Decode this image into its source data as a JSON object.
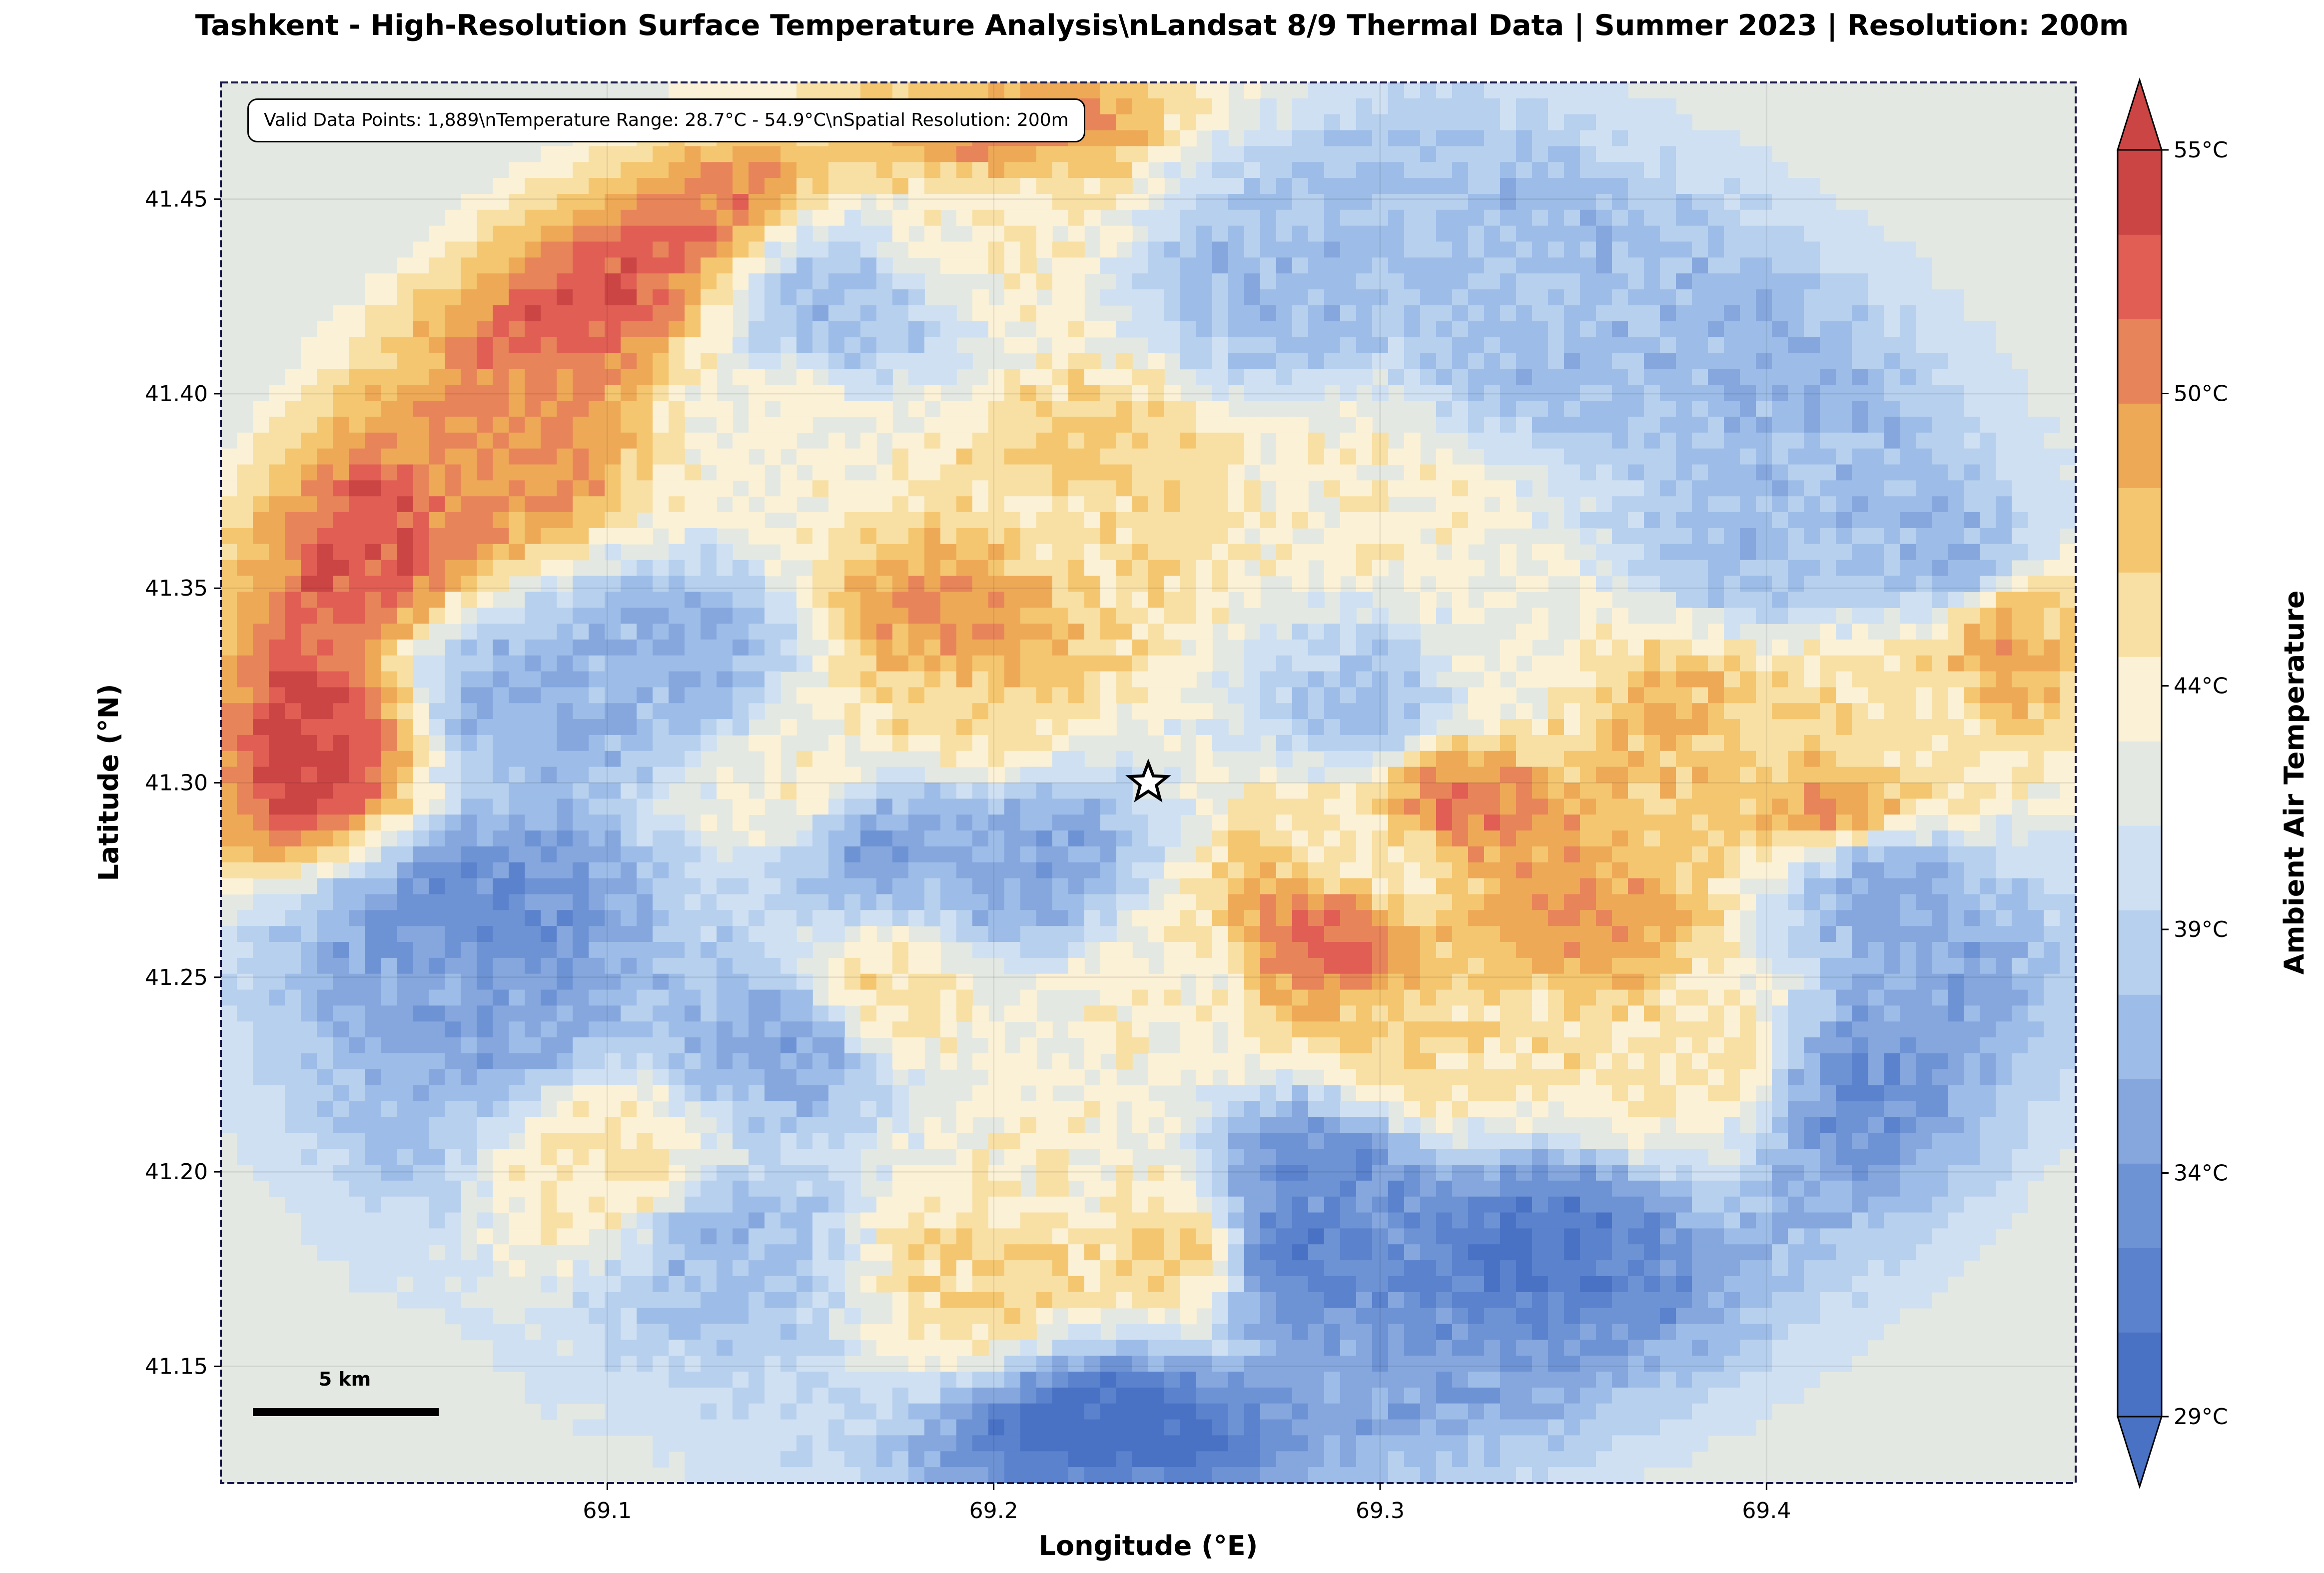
{
  "chart_data": {
    "type": "heatmap",
    "title": "Tashkent - High-Resolution Surface Temperature Analysis\\nLandsat 8/9 Thermal Data | Summer 2023 | Resolution: 200m",
    "xlabel": "Longitude (°E)",
    "ylabel": "Latitude (°N)",
    "xlim": [
      69.0,
      69.48
    ],
    "ylim": [
      41.12,
      41.48
    ],
    "x_ticks": [
      "69.1",
      "69.2",
      "69.3",
      "69.4"
    ],
    "y_ticks": [
      "41.15",
      "41.20",
      "41.25",
      "41.30",
      "41.35",
      "41.40",
      "41.45"
    ],
    "grid": true,
    "colorbar": {
      "label": "Ambient Air Temperature",
      "range": [
        29,
        55
      ],
      "ticks": [
        "29°C",
        "34°C",
        "39°C",
        "44°C",
        "50°C",
        "55°C"
      ],
      "colors": [
        "#4a72c4",
        "#5b82cc",
        "#6e93d4",
        "#85a7de",
        "#9dbde8",
        "#b6d0ee",
        "#cfe0f2",
        "#e3e8e2",
        "#fbf1d6",
        "#f8e0a4",
        "#f4c66f",
        "#eea957",
        "#e8845a",
        "#e05e54",
        "#cc4545"
      ]
    },
    "annotation": "Valid Data Points: 1,889\\nTemperature Range: 28.7°C - 54.9°C\\nSpatial Resolution: 200m",
    "scale_bar": "5 km",
    "marker": {
      "lon": 69.24,
      "lat": 41.3,
      "symbol": "star"
    },
    "hotspots": [
      {
        "lon": 69.02,
        "lat": 41.31,
        "temp": 54
      },
      {
        "lon": 69.03,
        "lat": 41.365,
        "temp": 53
      },
      {
        "lon": 69.09,
        "lat": 41.43,
        "temp": 53
      },
      {
        "lon": 69.11,
        "lat": 41.45,
        "temp": 52
      },
      {
        "lon": 69.285,
        "lat": 41.26,
        "temp": 52
      },
      {
        "lon": 69.32,
        "lat": 41.295,
        "temp": 51
      },
      {
        "lon": 69.42,
        "lat": 41.295,
        "temp": 50
      },
      {
        "lon": 69.47,
        "lat": 41.34,
        "temp": 50
      },
      {
        "lon": 69.19,
        "lat": 41.34,
        "temp": 50
      },
      {
        "lon": 69.2,
        "lat": 41.475,
        "temp": 51
      },
      {
        "lon": 69.07,
        "lat": 41.385,
        "temp": 50
      },
      {
        "lon": 69.35,
        "lat": 41.262,
        "temp": 50
      },
      {
        "lon": 69.38,
        "lat": 41.315,
        "temp": 48
      },
      {
        "lon": 69.22,
        "lat": 41.38,
        "temp": 47
      },
      {
        "lon": 69.25,
        "lat": 41.18,
        "temp": 47
      },
      {
        "lon": 69.17,
        "lat": 41.245,
        "temp": 46
      },
      {
        "lon": 69.2,
        "lat": 41.175,
        "temp": 46
      },
      {
        "lon": 69.31,
        "lat": 41.23,
        "temp": 46
      },
      {
        "lon": 69.1,
        "lat": 41.2,
        "temp": 45
      },
      {
        "lon": 69.38,
        "lat": 41.23,
        "temp": 45
      }
    ],
    "coldspots": [
      {
        "lon": 69.23,
        "lat": 41.13,
        "temp": 29
      },
      {
        "lon": 69.275,
        "lat": 41.18,
        "temp": 31
      },
      {
        "lon": 69.34,
        "lat": 41.18,
        "temp": 31
      },
      {
        "lon": 69.07,
        "lat": 41.265,
        "temp": 33
      },
      {
        "lon": 69.43,
        "lat": 41.22,
        "temp": 33
      },
      {
        "lon": 69.285,
        "lat": 41.2,
        "temp": 33
      },
      {
        "lon": 69.06,
        "lat": 41.24,
        "temp": 35
      },
      {
        "lon": 69.17,
        "lat": 41.285,
        "temp": 35
      },
      {
        "lon": 69.21,
        "lat": 41.28,
        "temp": 35
      },
      {
        "lon": 69.12,
        "lat": 41.33,
        "temp": 36
      },
      {
        "lon": 69.08,
        "lat": 41.32,
        "temp": 36
      },
      {
        "lon": 69.16,
        "lat": 41.42,
        "temp": 37
      },
      {
        "lon": 69.35,
        "lat": 41.41,
        "temp": 37
      },
      {
        "lon": 69.45,
        "lat": 41.36,
        "temp": 36
      },
      {
        "lon": 69.45,
        "lat": 41.24,
        "temp": 35
      },
      {
        "lon": 69.3,
        "lat": 41.32,
        "temp": 37
      },
      {
        "lon": 69.35,
        "lat": 41.46,
        "temp": 37
      },
      {
        "lon": 69.15,
        "lat": 41.235,
        "temp": 35
      },
      {
        "lon": 69.43,
        "lat": 41.275,
        "temp": 35
      },
      {
        "lon": 69.27,
        "lat": 41.43,
        "temp": 37
      },
      {
        "lon": 69.03,
        "lat": 41.215,
        "temp": 37
      },
      {
        "lon": 69.34,
        "lat": 41.14,
        "temp": 35
      },
      {
        "lon": 69.44,
        "lat": 41.45,
        "temp": 37
      },
      {
        "lon": 69.41,
        "lat": 41.41,
        "temp": 36
      },
      {
        "lon": 69.4,
        "lat": 41.36,
        "temp": 37
      },
      {
        "lon": 69.13,
        "lat": 41.18,
        "temp": 37
      }
    ],
    "warm_zones": [
      {
        "lon": 69.22,
        "lat": 41.37,
        "temp": 45
      },
      {
        "lon": 69.19,
        "lat": 41.32,
        "temp": 46
      },
      {
        "lon": 69.15,
        "lat": 41.3,
        "temp": 44
      },
      {
        "lon": 69.4,
        "lat": 41.31,
        "temp": 46
      },
      {
        "lon": 69.34,
        "lat": 41.24,
        "temp": 45
      },
      {
        "lon": 69.22,
        "lat": 41.2,
        "temp": 44
      },
      {
        "lon": 69.25,
        "lat": 41.25,
        "temp": 44
      },
      {
        "lon": 69.15,
        "lat": 41.395,
        "temp": 43
      },
      {
        "lon": 69.3,
        "lat": 41.37,
        "temp": 44
      },
      {
        "lon": 69.33,
        "lat": 41.33,
        "temp": 43
      },
      {
        "lon": 69.2,
        "lat": 41.44,
        "temp": 44
      },
      {
        "lon": 69.43,
        "lat": 41.31,
        "temp": 45
      },
      {
        "lon": 69.3,
        "lat": 41.28,
        "temp": 44
      }
    ],
    "background_temp": 41.5
  }
}
